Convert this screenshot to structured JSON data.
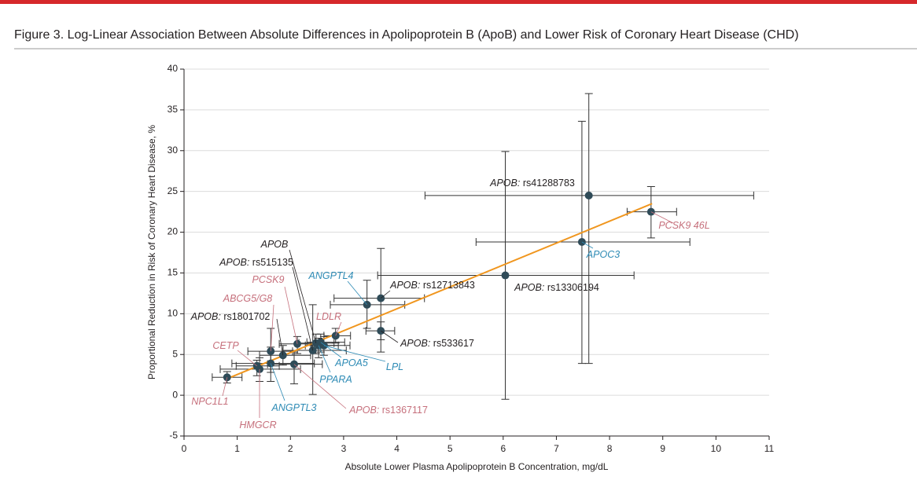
{
  "chart_data": {
    "type": "scatter",
    "title": "Figure 3. Log-Linear Association Between Absolute Differences in Apolipoprotein B (ApoB) and Lower Risk of Coronary Heart Disease (CHD)",
    "x_label": "Absolute Lower Plasma Apolipoprotein B Concentration, mg/dL",
    "y_label": "Proportional Reduction in Risk of Coronary Heart Disease, %",
    "xlim": [
      0,
      11
    ],
    "xticks": [
      0,
      1,
      2,
      3,
      4,
      5,
      6,
      7,
      8,
      9,
      10,
      11
    ],
    "ylim": [
      -5,
      40
    ],
    "yticks": [
      -5,
      0,
      5,
      10,
      15,
      20,
      25,
      30,
      35,
      40
    ],
    "grid": true,
    "point_color": "#2f4b58",
    "fit_color": "#f0961e",
    "fit_line": {
      "x": [
        0.8,
        8.8
      ],
      "y": [
        2.0,
        23.5
      ]
    },
    "points": [
      {
        "gene": "NPC1L1",
        "color": "#c6707c",
        "x": 0.81,
        "y": 2.2,
        "x_low": 0.53,
        "x_high": 1.09,
        "y_low": 1.5,
        "y_high": 2.9
      },
      {
        "gene": "HMGCR",
        "color": "#c6707c",
        "x": 1.42,
        "y": 3.2,
        "x_low": 0.68,
        "x_high": 2.19,
        "y_low": 1.7,
        "y_high": 4.6
      },
      {
        "gene": "CETP",
        "color": "#c6707c",
        "x": 1.37,
        "y": 3.6,
        "x_low": 0.98,
        "x_high": 1.79,
        "y_low": 2.4,
        "y_high": 4.3
      },
      {
        "gene": "ANGPTL3",
        "color": "#2e8bb5",
        "x": 1.63,
        "y": 3.9,
        "x_low": 0.9,
        "x_high": 2.45,
        "y_low": 1.7,
        "y_high": 5.9
      },
      {
        "gene": "ABCG5/G8",
        "color": "#c6707c",
        "x": 1.63,
        "y": 5.4,
        "x_low": 1.2,
        "x_high": 2.04,
        "y_low": 2.8,
        "y_high": 8.2
      },
      {
        "gene": "APOB:",
        "variant": "rs1801702",
        "color": "#231f20",
        "x": 1.86,
        "y": 4.9,
        "x_low": 1.42,
        "x_high": 2.38,
        "y_low": 3.7,
        "y_high": 6.1
      },
      {
        "gene": "APOB:",
        "variant": "rs1367117",
        "color": "#c6707c",
        "x": 2.07,
        "y": 3.8,
        "x_low": 1.57,
        "x_high": 2.6,
        "y_low": 1.4,
        "y_high": 5.3
      },
      {
        "gene": "PCSK9",
        "color": "#c6707c",
        "x": 2.13,
        "y": 6.3,
        "x_low": 1.79,
        "x_high": 2.45,
        "y_low": 5.1,
        "y_high": 7.2
      },
      {
        "gene": "APOB:",
        "variant": "rs515135",
        "color": "#231f20",
        "x": 2.42,
        "y": 5.5,
        "x_low": 1.86,
        "x_high": 3.05,
        "y_low": 0.1,
        "y_high": 11.1
      },
      {
        "gene": "APOB",
        "color": "#231f20",
        "x": 2.48,
        "y": 6.4,
        "x_low": 2.16,
        "x_high": 2.82,
        "y_low": 5.1,
        "y_high": 7.5
      },
      {
        "gene": "PPARA",
        "color": "#2e8bb5",
        "x": 2.53,
        "y": 6.1,
        "x_low": 2.28,
        "x_high": 2.9,
        "y_low": 4.6,
        "y_high": 7.0
      },
      {
        "gene": "APOA5",
        "color": "#2e8bb5",
        "x": 2.57,
        "y": 6.5,
        "x_low": 2.31,
        "x_high": 3.02,
        "y_low": 5.3,
        "y_high": 7.5
      },
      {
        "gene": "LPL",
        "color": "#2e8bb5",
        "x": 2.63,
        "y": 6.1,
        "x_low": 2.38,
        "x_high": 3.12,
        "y_low": 4.9,
        "y_high": 7.2
      },
      {
        "gene": "LDLR",
        "color": "#c6707c",
        "x": 2.85,
        "y": 7.3,
        "x_low": 2.63,
        "x_high": 3.13,
        "y_low": 6.4,
        "y_high": 8.2
      },
      {
        "gene": "ANGPTL4",
        "color": "#2e8bb5",
        "x": 3.44,
        "y": 11.1,
        "x_low": 2.75,
        "x_high": 4.15,
        "y_low": 8.2,
        "y_high": 14.1
      },
      {
        "gene": "APOB:",
        "variant": "rs12713843",
        "color": "#231f20",
        "x": 3.7,
        "y": 11.9,
        "x_low": 2.82,
        "x_high": 4.52,
        "y_low": 5.3,
        "y_high": 18.0
      },
      {
        "gene": "APOB:",
        "variant": "rs533617",
        "color": "#231f20",
        "x": 3.7,
        "y": 7.9,
        "x_low": 3.42,
        "x_high": 3.96,
        "y_low": 6.8,
        "y_high": 9.0
      },
      {
        "gene": "APOB:",
        "variant": "rs13306194",
        "color": "#231f20",
        "x": 6.04,
        "y": 14.7,
        "x_low": 3.64,
        "x_high": 8.46,
        "y_low": -0.5,
        "y_high": 29.9
      },
      {
        "gene": "APOB:",
        "variant": "rs41288783",
        "color": "#231f20",
        "x": 7.61,
        "y": 24.5,
        "x_low": 4.53,
        "x_high": 10.71,
        "y_low": 3.9,
        "y_high": 37.0
      },
      {
        "gene": "APOC3",
        "color": "#2e8bb5",
        "x": 7.48,
        "y": 18.8,
        "x_low": 5.49,
        "x_high": 9.51,
        "y_low": 3.9,
        "y_high": 33.6
      },
      {
        "gene": "PCSK9 46L",
        "color": "#c6707c",
        "x": 8.78,
        "y": 22.5,
        "x_low": 8.33,
        "x_high": 9.26,
        "y_low": 19.3,
        "y_high": 25.6
      }
    ]
  }
}
